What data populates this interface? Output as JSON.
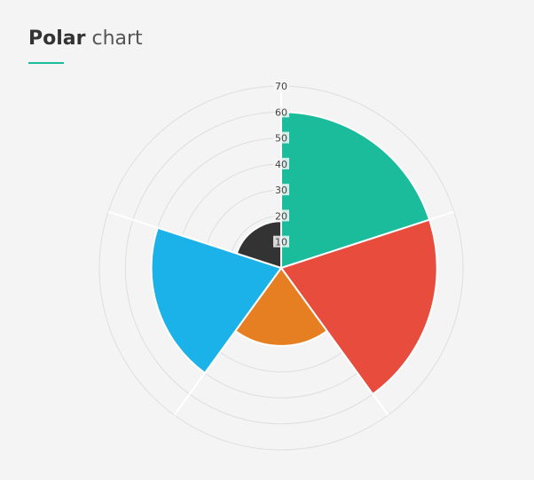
{
  "header": {
    "title_strong": "Polar",
    "title_light": "chart"
  },
  "chart_data": {
    "type": "polar",
    "start_angle_deg": 0,
    "r_max": 70,
    "r_ticks": [
      10,
      20,
      30,
      40,
      50,
      60,
      70
    ],
    "grid": true,
    "series": [
      {
        "value": 60,
        "color": "#1abc9c"
      },
      {
        "value": 60,
        "color": "#e74c3c"
      },
      {
        "value": 30,
        "color": "#e67e22"
      },
      {
        "value": 50,
        "color": "#1ab2e8"
      },
      {
        "value": 18,
        "color": "#333333"
      }
    ]
  }
}
